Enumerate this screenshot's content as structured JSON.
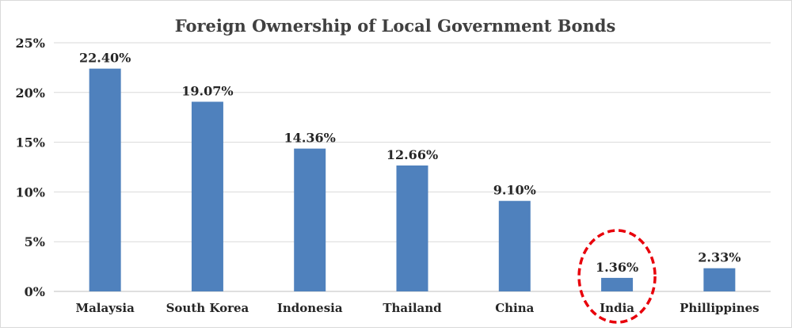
{
  "chart_data": {
    "type": "bar",
    "title": "Foreign Ownership of Local Government Bonds",
    "xlabel": "",
    "ylabel": "",
    "categories": [
      "Malaysia",
      "South Korea",
      "Indonesia",
      "Thailand",
      "China",
      "India",
      "Phillippines"
    ],
    "values": [
      22.4,
      19.07,
      14.36,
      12.66,
      9.1,
      1.36,
      2.33
    ],
    "data_labels": [
      "22.40%",
      "19.07%",
      "14.36%",
      "12.66%",
      "9.10%",
      "1.36%",
      "2.33%"
    ],
    "yticks": [
      0,
      5,
      10,
      15,
      20,
      25
    ],
    "ytick_labels": [
      "0%",
      "5%",
      "10%",
      "15%",
      "20%",
      "25%"
    ],
    "ylim": [
      0,
      25
    ],
    "grid": true,
    "legend": "none",
    "bar_color": "#4f81bd",
    "highlight": {
      "category": "India",
      "shape": "dashed-circle",
      "color": "#e8000b"
    }
  }
}
